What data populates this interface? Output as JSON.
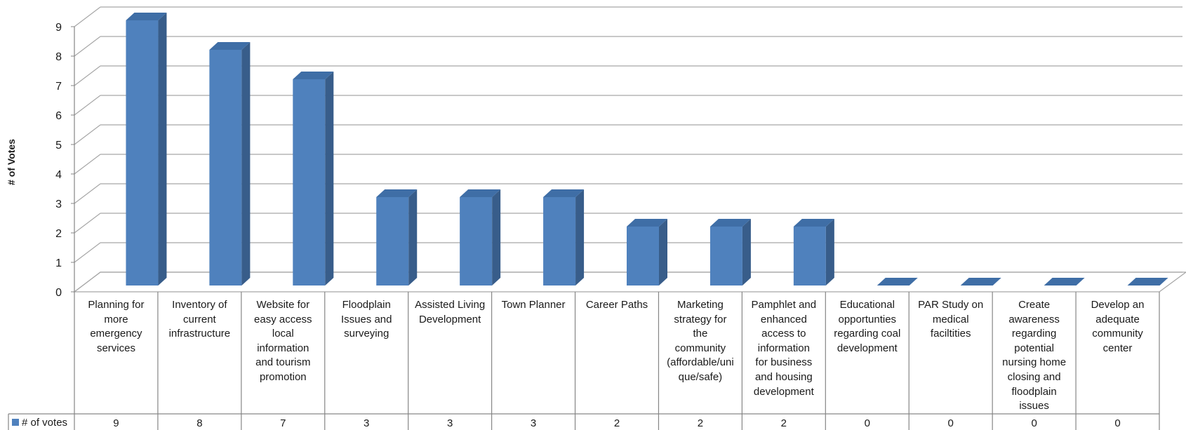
{
  "chart_data": {
    "type": "bar",
    "style": "3d-column",
    "ylabel": "# of Votes",
    "ylim": [
      0,
      9
    ],
    "yticks": [
      "0",
      "1",
      "2",
      "3",
      "4",
      "5",
      "6",
      "7",
      "8",
      "9"
    ],
    "grid": true,
    "legend_position": "bottom-left (data table)",
    "categories": [
      "Planning for more emergency services",
      "Inventory of current infrastructure",
      "Website for easy access local information and tourism promotion",
      "Floodplain Issues and surveying",
      "Assisted Living Development",
      "Town Planner",
      "Career Paths",
      "Marketing strategy for the community (affordable/unique/safe)",
      "Pamphlet and enhanced access to information for business and housing development",
      "Educational opportunties regarding coal development",
      "PAR Study on medical faciltities",
      "Create awareness regarding potential nursing home closing and floodplain issues",
      "Develop an adequate community center"
    ],
    "category_display_lines": [
      [
        "Planning for",
        "more",
        "emergency",
        "services"
      ],
      [
        "Inventory of",
        "current",
        "infrastructure"
      ],
      [
        "Website for",
        "easy access",
        "local",
        "information",
        "and tourism",
        "promotion"
      ],
      [
        "Floodplain",
        "Issues and",
        "surveying"
      ],
      [
        "Assisted Living",
        "Development"
      ],
      [
        "Town Planner"
      ],
      [
        "Career Paths"
      ],
      [
        "Marketing",
        "strategy for",
        "the",
        "community",
        "(affordable/uni",
        "que/safe)"
      ],
      [
        "Pamphlet and",
        "enhanced",
        "access to",
        "information",
        "for business",
        "and housing",
        "development"
      ],
      [
        "Educational",
        "opportunties",
        "regarding coal",
        "development"
      ],
      [
        "PAR Study on",
        "medical",
        "faciltities"
      ],
      [
        "Create",
        "awareness",
        "regarding",
        "potential",
        "nursing home",
        "closing and",
        "floodplain",
        "issues"
      ],
      [
        "Develop an",
        "adequate",
        "community",
        "center"
      ]
    ],
    "series": [
      {
        "name": "# of votes",
        "values": [
          9,
          8,
          7,
          3,
          3,
          3,
          2,
          2,
          2,
          0,
          0,
          0,
          0
        ],
        "value_labels": [
          "9",
          "8",
          "7",
          "3",
          "3",
          "3",
          "2",
          "2",
          "2",
          "0",
          "0",
          "0",
          "0"
        ]
      }
    ]
  },
  "colors": {
    "bar_front": "#4f81bd",
    "bar_side": "#385d8a",
    "bar_top": "#3f6ea6",
    "grid": "#a6a6a6",
    "axis": "#868686",
    "text": "#1a1a1a"
  }
}
